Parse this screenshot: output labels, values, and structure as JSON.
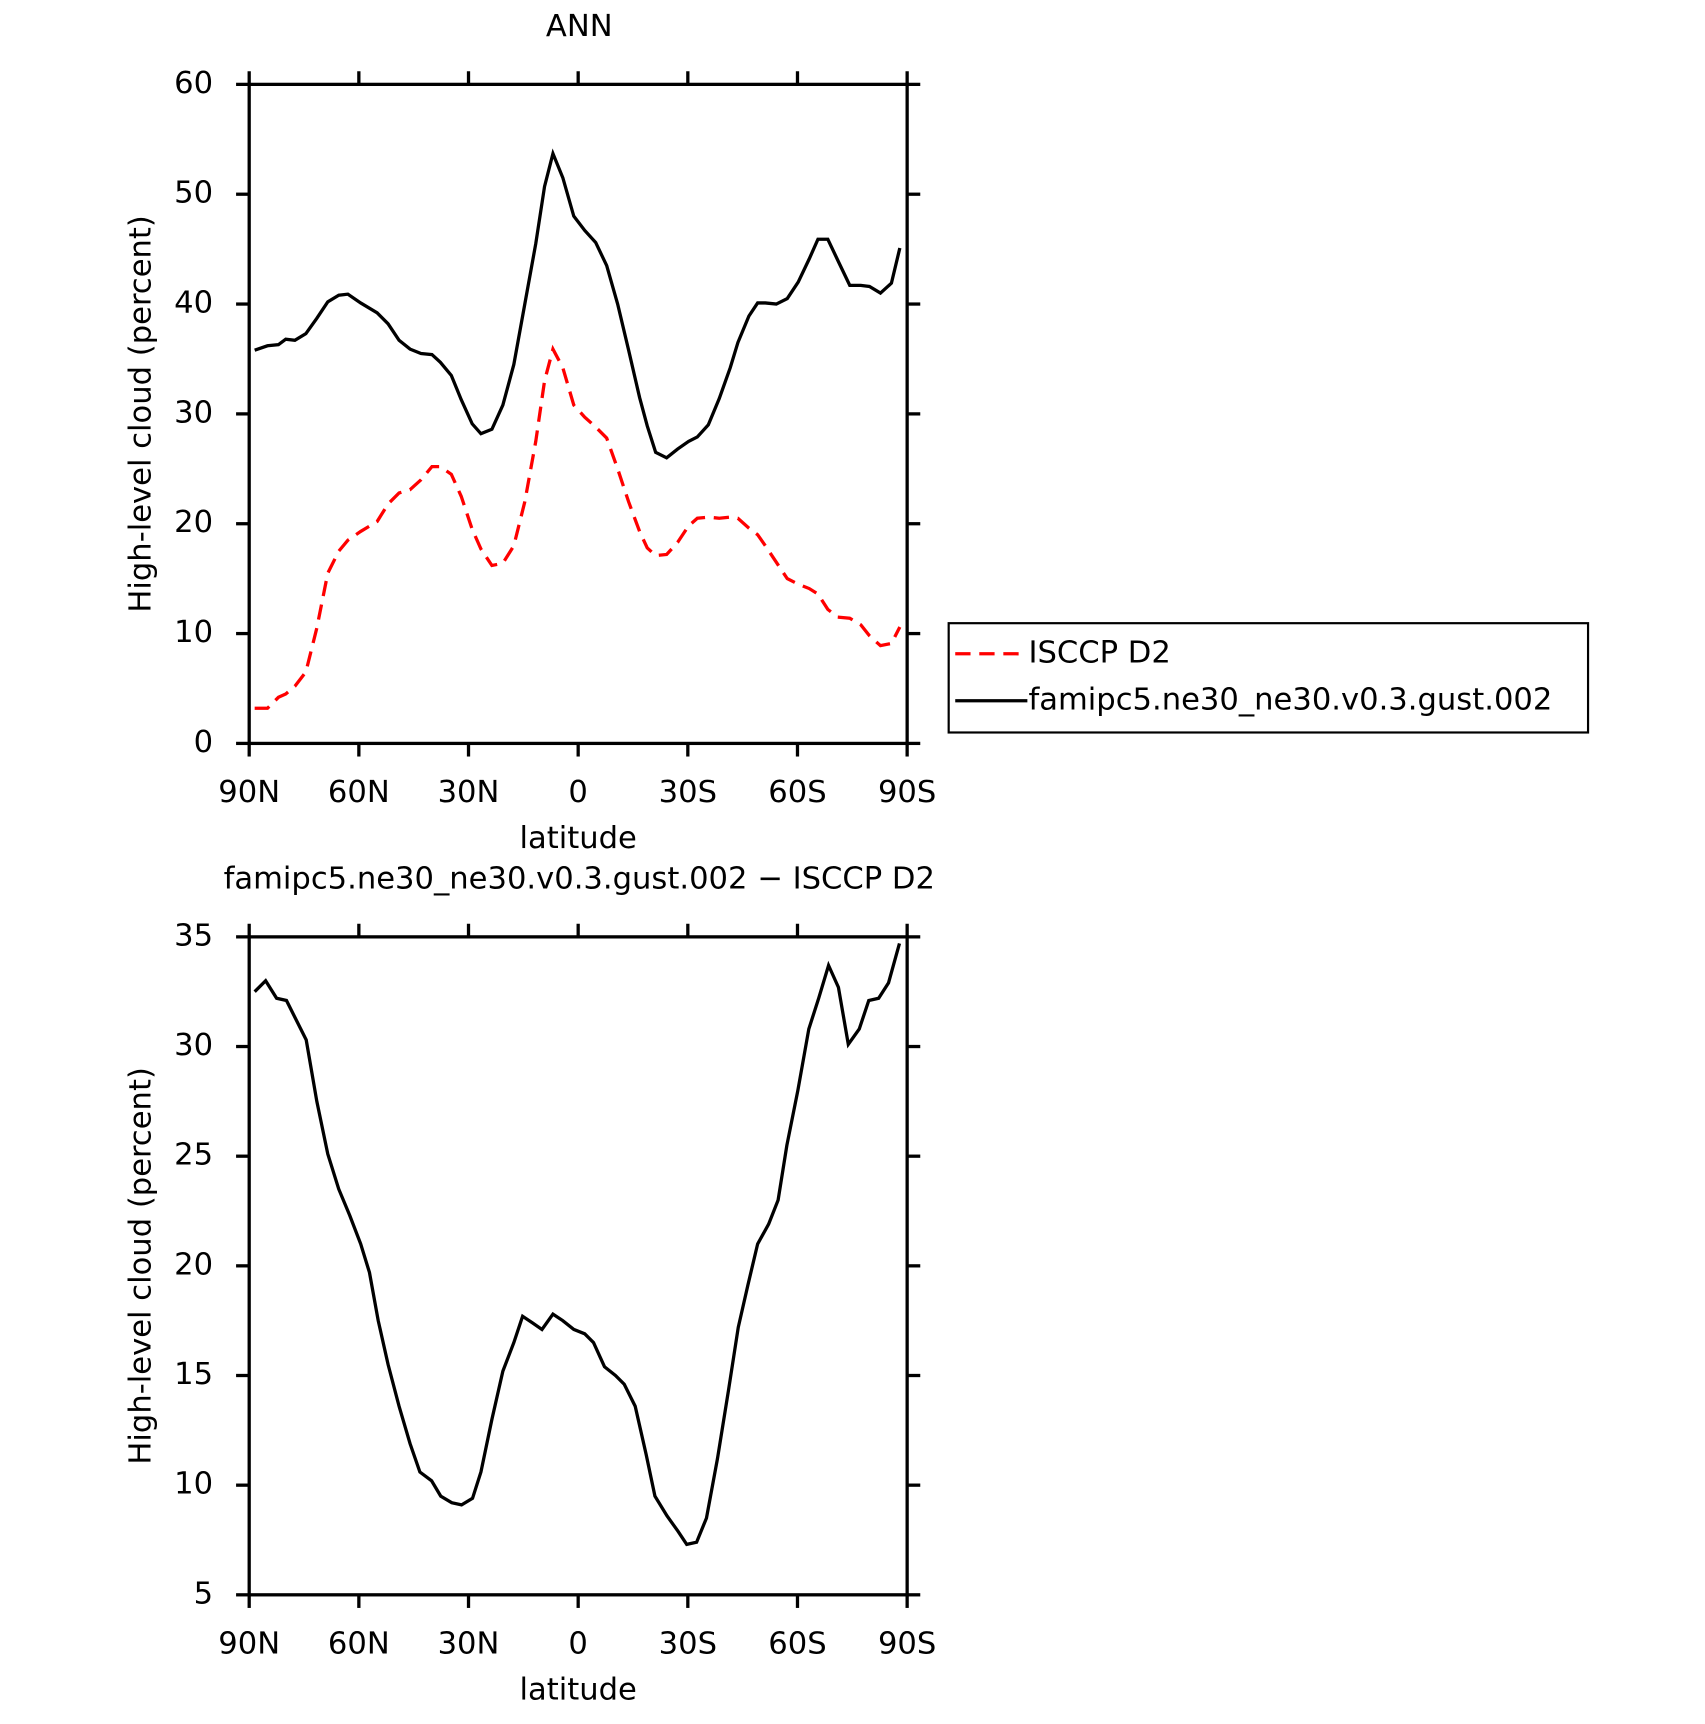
{
  "chart_data": [
    {
      "type": "line",
      "title": "ANN",
      "xlabel": "latitude",
      "ylabel": "High-level cloud (percent)",
      "x": [
        88.5,
        85,
        82,
        80,
        77.5,
        74.5,
        71.5,
        68.5,
        65.5,
        63,
        59.5,
        55,
        52,
        49,
        46,
        43,
        40,
        37.7,
        34.7,
        32,
        29,
        26.6,
        23.6,
        20.6,
        17.6,
        14.6,
        11.6,
        9.2,
        6.9,
        4.2,
        1.2,
        -1.8,
        -4.8,
        -7.8,
        -10.8,
        -13.8,
        -16.8,
        -18.9,
        -21.2,
        -24.2,
        -27.2,
        -30.2,
        -32.6,
        -35.6,
        -38.6,
        -41.6,
        -43.7,
        -46.7,
        -49.1,
        -51.2,
        -54.2,
        -57.2,
        -60.2,
        -63.2,
        -65.6,
        -68.3,
        -71,
        -74.3,
        -77.3,
        -79.7,
        -82.7,
        -85.7,
        -88
      ],
      "series": [
        {
          "name": "ISCCP D2",
          "color": "#ff0000",
          "linestyle": "dashed",
          "values": [
            3.2,
            3.2,
            4.2,
            4.5,
            5.2,
            6.5,
            10.5,
            15.5,
            17.5,
            18.5,
            19.3,
            20.2,
            21.8,
            22.8,
            23.1,
            24,
            25.2,
            25.2,
            24.5,
            22.5,
            19.5,
            17.7,
            16.2,
            16.4,
            18,
            22,
            27.5,
            33,
            35.9,
            34.2,
            30.8,
            29.7,
            28.8,
            27.8,
            25,
            22,
            19.3,
            17.8,
            17.1,
            17.2,
            18.3,
            19.8,
            20.5,
            20.6,
            20.5,
            20.6,
            20.5,
            19.6,
            19,
            18,
            16.5,
            15,
            14.5,
            14.1,
            13.6,
            12.2,
            11.5,
            11.4,
            10.8,
            9.8,
            8.9,
            9.1,
            10.6
          ]
        },
        {
          "name": "famipc5.ne30_ne30.v0.3.gust.002",
          "color": "#000000",
          "linestyle": "solid",
          "values": [
            35.8,
            36.2,
            36.3,
            36.8,
            36.7,
            37.3,
            38.7,
            40.2,
            40.8,
            40.9,
            40.1,
            39.2,
            38.2,
            36.7,
            35.9,
            35.5,
            35.4,
            34.7,
            33.5,
            31.3,
            29.1,
            28.2,
            28.6,
            30.8,
            34.5,
            40,
            45.5,
            50.7,
            53.7,
            51.5,
            48,
            46.7,
            45.6,
            43.5,
            40,
            35.8,
            31.5,
            28.9,
            26.5,
            26,
            26.8,
            27.5,
            27.9,
            29,
            31.4,
            34.2,
            36.5,
            38.9,
            40.1,
            40.1,
            40,
            40.5,
            42,
            44.1,
            45.9,
            45.9,
            44,
            41.7,
            41.7,
            41.6,
            41,
            41.9,
            45.1
          ]
        }
      ],
      "xlim": [
        90,
        -90
      ],
      "xticks": [
        {
          "value": 90,
          "label": "90N"
        },
        {
          "value": 60,
          "label": "60N"
        },
        {
          "value": 30,
          "label": "30N"
        },
        0,
        {
          "value": -30,
          "label": "30S"
        },
        {
          "value": -60,
          "label": "60S"
        },
        {
          "value": -90,
          "label": "90S"
        }
      ],
      "ylim": [
        0,
        60
      ],
      "yticks": [
        0,
        10,
        20,
        30,
        40,
        50,
        60
      ],
      "legend": "right"
    },
    {
      "type": "line",
      "title": "famipc5.ne30_ne30.v0.3.gust.002 − ISCCP D2",
      "xlabel": "latitude",
      "ylabel": "High-level cloud (percent)",
      "x": [
        88.5,
        85.5,
        82.5,
        79.8,
        77.4,
        74.4,
        71.5,
        68.5,
        65.5,
        62.5,
        59.5,
        57.1,
        54.7,
        52,
        49,
        46,
        43.3,
        40.1,
        37.6,
        34.6,
        31.9,
        28.9,
        26.6,
        23.6,
        20.6,
        17.6,
        15.2,
        12.5,
        9.9,
        6.9,
        4.2,
        1.2,
        -1.8,
        -4.2,
        -7.2,
        -10.2,
        -12.6,
        -15.6,
        -18.6,
        -21,
        -24.3,
        -27.3,
        -29.7,
        -32.4,
        -35.1,
        -38.1,
        -41.1,
        -43.8,
        -46.4,
        -49.1,
        -52.1,
        -54.7,
        -57.1,
        -60.1,
        -63.1,
        -65.8,
        -68.5,
        -71.2,
        -73.9,
        -76.9,
        -79.5,
        -82.2,
        -84.9,
        -87.9
      ],
      "color": "#000000",
      "values": [
        32.5,
        33,
        32.2,
        32.1,
        31.3,
        30.3,
        27.5,
        25.1,
        23.5,
        22.3,
        21,
        19.7,
        17.5,
        15.5,
        13.6,
        11.9,
        10.6,
        10.2,
        9.5,
        9.2,
        9.1,
        9.4,
        10.6,
        13,
        15.2,
        16.5,
        17.7,
        17.4,
        17.1,
        17.8,
        17.5,
        17.1,
        16.9,
        16.5,
        15.4,
        15,
        14.6,
        13.6,
        11.4,
        9.5,
        8.6,
        7.9,
        7.3,
        7.4,
        8.5,
        11.2,
        14.3,
        17.2,
        19.1,
        21,
        21.9,
        23,
        25.5,
        28,
        30.8,
        32.2,
        33.7,
        32.7,
        30.1,
        30.8,
        32.1,
        32.2,
        32.9,
        34.7
      ],
      "xlim": [
        90,
        -90
      ],
      "xticks": [
        {
          "value": 90,
          "label": "90N"
        },
        {
          "value": 60,
          "label": "60N"
        },
        {
          "value": 30,
          "label": "30N"
        },
        0,
        {
          "value": -30,
          "label": "30S"
        },
        {
          "value": -60,
          "label": "60S"
        },
        {
          "value": -90,
          "label": "90S"
        }
      ],
      "ylim": [
        5,
        35
      ],
      "yticks": [
        5,
        10,
        15,
        20,
        25,
        30,
        35
      ]
    }
  ]
}
